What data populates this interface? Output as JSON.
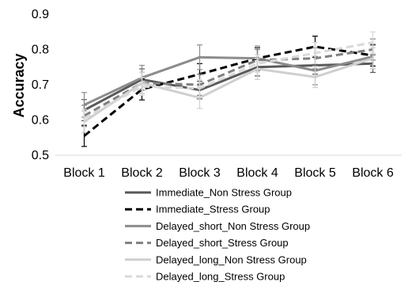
{
  "chart_data": {
    "type": "line",
    "title": "",
    "xlabel": "",
    "ylabel": "Accuracy",
    "ylim": [
      0.5,
      0.9
    ],
    "yticks": [
      0.5,
      0.6,
      0.7,
      0.8,
      0.9
    ],
    "ytick_labels": [
      "0.5",
      "0.6",
      "0.7",
      "0.8",
      "0.9"
    ],
    "categories": [
      "Block 1",
      "Block 2",
      "Block 3",
      "Block 4",
      "Block 5",
      "Block 6"
    ],
    "grid": false,
    "legend_position": "bottom",
    "series": [
      {
        "name": "Immediate_Non Stress Group",
        "color": "#595959",
        "dash": "solid",
        "values": [
          0.628,
          0.715,
          0.685,
          0.75,
          0.755,
          0.76
        ],
        "errors": [
          0.03,
          0.03,
          0.025,
          0.025,
          0.025,
          0.025
        ]
      },
      {
        "name": "Immediate_Stress Group",
        "color": "#000000",
        "dash": "dashed",
        "values": [
          0.555,
          0.687,
          0.73,
          0.775,
          0.808,
          0.783
        ],
        "errors": [
          0.03,
          0.03,
          0.03,
          0.03,
          0.03,
          0.03
        ]
      },
      {
        "name": "Delayed_short_Non Stress Group",
        "color": "#8c8c8c",
        "dash": "solid",
        "values": [
          0.643,
          0.72,
          0.778,
          0.775,
          0.74,
          0.78
        ],
        "errors": [
          0.035,
          0.035,
          0.035,
          0.035,
          0.04,
          0.035
        ]
      },
      {
        "name": "Delayed_short_Stress Group",
        "color": "#808080",
        "dash": "dashed",
        "values": [
          0.612,
          0.705,
          0.7,
          0.77,
          0.775,
          0.8
        ],
        "errors": [
          0.03,
          0.03,
          0.03,
          0.03,
          0.03,
          0.03
        ]
      },
      {
        "name": "Delayed_long_Non Stress Group",
        "color": "#cfcfcf",
        "dash": "solid",
        "values": [
          0.595,
          0.705,
          0.663,
          0.745,
          0.722,
          0.775
        ],
        "errors": [
          0.03,
          0.03,
          0.03,
          0.03,
          0.03,
          0.03
        ]
      },
      {
        "name": "Delayed_long_Stress Group",
        "color": "#d9d9d9",
        "dash": "dashed",
        "values": [
          0.605,
          0.695,
          0.69,
          0.76,
          0.79,
          0.82
        ],
        "errors": [
          0.025,
          0.025,
          0.025,
          0.025,
          0.03,
          0.03
        ]
      }
    ]
  }
}
